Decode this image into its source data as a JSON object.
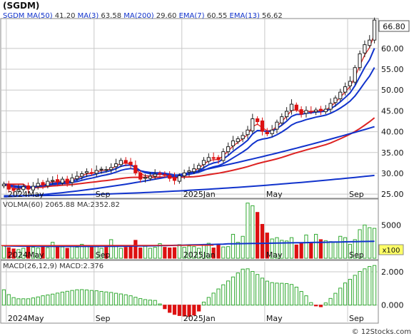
{
  "title": "(SGDM)",
  "watermark": "© 12Stocks.com",
  "colors": {
    "up": "#33aa33",
    "down": "#dd1111",
    "ma_blue": "#1133cc",
    "ma_red": "#dd2222",
    "grid": "#c8c8c8",
    "bg": "#ffffff"
  },
  "price_panel": {
    "legend": [
      {
        "text": "SGDM",
        "color": "#1133cc"
      },
      {
        "text": "MA(50)",
        "color": "#1133cc"
      },
      {
        "text": "41.20",
        "color": "#333333"
      },
      {
        "text": "MA(3)",
        "color": "#1133cc"
      },
      {
        "text": "63.58",
        "color": "#333333"
      },
      {
        "text": "MA(200)",
        "color": "#1133cc"
      },
      {
        "text": "29.60",
        "color": "#333333"
      },
      {
        "text": "EMA(7)",
        "color": "#1133cc"
      },
      {
        "text": "60.55",
        "color": "#333333"
      },
      {
        "text": "EMA(13)",
        "color": "#1133cc"
      },
      {
        "text": "56.62",
        "color": "#333333"
      }
    ],
    "last_price_label": "66.80",
    "y_ticks": [
      "60.00",
      "55.00",
      "50.00",
      "45.00",
      "40.00",
      "35.00",
      "30.00",
      "25.00"
    ],
    "y_tick_values": [
      60,
      55,
      50,
      45,
      40,
      35,
      30,
      25
    ],
    "x_labels": [
      "2024May",
      "Sep",
      "2025Jan",
      "May",
      "Sep"
    ]
  },
  "volume_panel": {
    "legend": [
      {
        "text": "VOLMA(60)",
        "color": "#333333"
      },
      {
        "text": "2065.88",
        "color": "#333333"
      },
      {
        "text": "MA:2352.82",
        "color": "#333333"
      }
    ],
    "y_ticks": [
      "5000"
    ],
    "y_tick_values": [
      5000
    ],
    "multiplier_label": "x100",
    "x_labels": [
      "2024May",
      "Sep",
      "2025Jan",
      "May",
      "Sep"
    ]
  },
  "macd_panel": {
    "legend": [
      {
        "text": "MACD(26,12,9)",
        "color": "#333333"
      },
      {
        "text": "MACD:2.376",
        "color": "#333333"
      }
    ],
    "y_ticks": [
      "2.000",
      "0.000"
    ],
    "y_tick_values": [
      2,
      0
    ],
    "x_labels": [
      "2024May",
      "Sep",
      "2025Jan",
      "May",
      "Sep"
    ]
  },
  "chart_data": {
    "type": "candlestick",
    "x": [
      "2024-04-22",
      "2024-04-29",
      "2024-05-06",
      "2024-05-13",
      "2024-05-20",
      "2024-05-27",
      "2024-06-03",
      "2024-06-10",
      "2024-06-17",
      "2024-06-24",
      "2024-07-01",
      "2024-07-08",
      "2024-07-15",
      "2024-07-22",
      "2024-07-29",
      "2024-08-05",
      "2024-08-12",
      "2024-08-19",
      "2024-08-26",
      "2024-09-02",
      "2024-09-09",
      "2024-09-16",
      "2024-09-23",
      "2024-09-30",
      "2024-10-07",
      "2024-10-14",
      "2024-10-21",
      "2024-10-28",
      "2024-11-04",
      "2024-11-11",
      "2024-11-18",
      "2024-11-25",
      "2024-12-02",
      "2024-12-09",
      "2024-12-16",
      "2024-12-23",
      "2024-12-30",
      "2025-01-06",
      "2025-01-13",
      "2025-01-20",
      "2025-01-27",
      "2025-02-03",
      "2025-02-10",
      "2025-02-17",
      "2025-02-24",
      "2025-03-03",
      "2025-03-10",
      "2025-03-17",
      "2025-03-24",
      "2025-03-31",
      "2025-04-07",
      "2025-04-14",
      "2025-04-21",
      "2025-04-28",
      "2025-05-05",
      "2025-05-12",
      "2025-05-19",
      "2025-05-26",
      "2025-06-02",
      "2025-06-09",
      "2025-06-16",
      "2025-06-23",
      "2025-06-30",
      "2025-07-07",
      "2025-07-14",
      "2025-07-21",
      "2025-07-28",
      "2025-08-04",
      "2025-08-11",
      "2025-08-18",
      "2025-08-25",
      "2025-09-01",
      "2025-09-08",
      "2025-09-15",
      "2025-09-22",
      "2025-09-29",
      "2025-10-06"
    ],
    "close": [
      27.4,
      26.2,
      25.9,
      26.1,
      26.8,
      26.2,
      26.9,
      27.6,
      27.2,
      28.1,
      28.3,
      27.9,
      28.6,
      27.6,
      28.9,
      29.3,
      29.9,
      30.4,
      30.0,
      30.7,
      31.0,
      30.9,
      31.4,
      32.3,
      33.1,
      32.5,
      32.1,
      30.1,
      28.6,
      29.0,
      29.3,
      29.8,
      29.9,
      29.5,
      28.8,
      28.3,
      29.4,
      30.1,
      30.6,
      31.1,
      31.9,
      33.1,
      33.8,
      33.6,
      33.3,
      35.2,
      36.4,
      37.8,
      38.3,
      39.1,
      40.4,
      43.1,
      42.4,
      40.1,
      39.5,
      40.4,
      42.3,
      43.6,
      44.9,
      46.6,
      45.3,
      44.2,
      45.1,
      44.8,
      45.2,
      45.0,
      45.4,
      46.8,
      48.1,
      49.5,
      50.8,
      52.1,
      55.4,
      58.7,
      60.9,
      62.0,
      66.8
    ],
    "volume": [
      1850,
      1600,
      1400,
      1300,
      1500,
      1800,
      1650,
      1550,
      1700,
      1600,
      2400,
      1750,
      1700,
      1500,
      1900,
      1650,
      2100,
      1750,
      1650,
      1850,
      1500,
      1650,
      2800,
      1850,
      1500,
      1650,
      1750,
      2700,
      1550,
      1800,
      1500,
      1650,
      2200,
      1650,
      1550,
      1600,
      2050,
      1650,
      1850,
      1750,
      1500,
      1950,
      2250,
      1550,
      2050,
      1700,
      1750,
      3600,
      2400,
      3300,
      8300,
      7900,
      6900,
      5100,
      3800,
      2900,
      3100,
      2700,
      2600,
      3100,
      2000,
      2200,
      3500,
      2300,
      3600,
      2800,
      2650,
      2500,
      2400,
      3300,
      3100,
      2100,
      2800,
      4300,
      5000,
      4600,
      4500
    ],
    "macd": [
      0.92,
      0.63,
      0.45,
      0.38,
      0.38,
      0.38,
      0.43,
      0.49,
      0.56,
      0.61,
      0.66,
      0.72,
      0.78,
      0.83,
      0.88,
      0.92,
      0.93,
      0.91,
      0.88,
      0.86,
      0.82,
      0.79,
      0.76,
      0.71,
      0.67,
      0.62,
      0.56,
      0.47,
      0.39,
      0.33,
      0.3,
      0.28,
      0.07,
      -0.22,
      -0.44,
      -0.56,
      -0.63,
      -0.66,
      -0.68,
      -0.6,
      -0.36,
      0.18,
      0.46,
      0.72,
      0.97,
      1.22,
      1.45,
      1.69,
      1.93,
      2.16,
      2.18,
      2.02,
      1.84,
      1.62,
      1.44,
      1.35,
      1.32,
      1.31,
      1.29,
      1.24,
      1.08,
      0.82,
      0.56,
      0.15,
      -0.05,
      -0.1,
      0.13,
      0.4,
      0.71,
      1.02,
      1.33,
      1.55,
      1.79,
      2.02,
      2.18,
      2.32,
      2.38
    ],
    "ylim": [
      24,
      67
    ],
    "volume_ylim": [
      0,
      8800
    ],
    "macd_ylim": [
      -1.0,
      2.6
    ]
  }
}
